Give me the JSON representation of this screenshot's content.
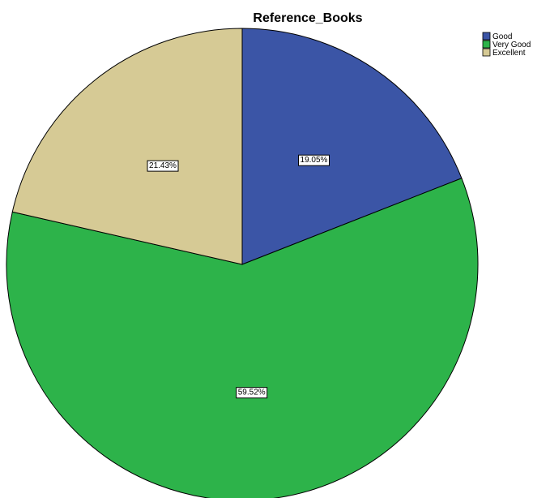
{
  "chart_data": {
    "type": "pie",
    "title": "Reference_Books",
    "categories": [
      "Good",
      "Very Good",
      "Excellent"
    ],
    "values": [
      19.05,
      59.52,
      21.43
    ],
    "labels": [
      "19.05%",
      "59.52%",
      "21.43%"
    ],
    "colors": [
      "#3b55a6",
      "#2db34a",
      "#d6ca95"
    ],
    "start_angle_deg": 0,
    "direction": "clockwise",
    "legend_position": "top-right"
  }
}
